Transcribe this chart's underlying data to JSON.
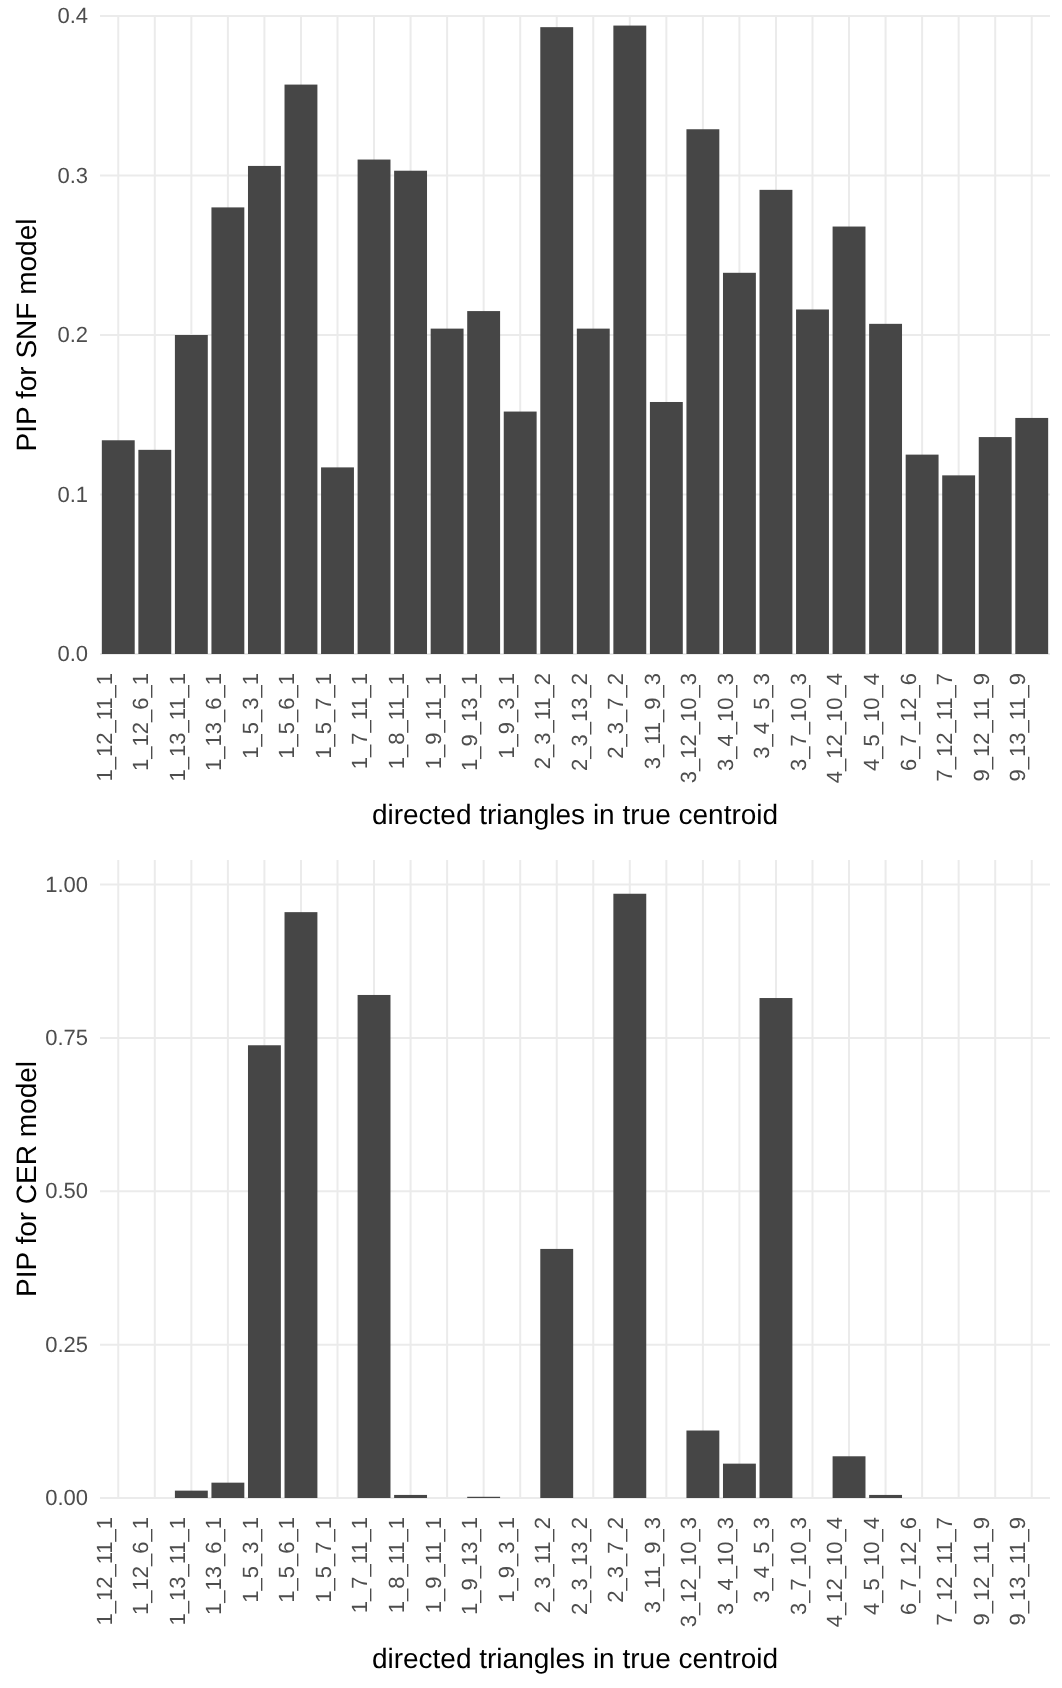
{
  "chart_data": [
    {
      "type": "bar",
      "xlabel": "directed triangles in true centroid",
      "ylabel": "PIP for SNF model",
      "categories": [
        "1_12_11_1",
        "1_12_6_1",
        "1_13_11_1",
        "1_13_6_1",
        "1_5_3_1",
        "1_5_6_1",
        "1_5_7_1",
        "1_7_11_1",
        "1_8_11_1",
        "1_9_11_1",
        "1_9_13_1",
        "1_9_3_1",
        "2_3_11_2",
        "2_3_13_2",
        "2_3_7_2",
        "3_11_9_3",
        "3_12_10_3",
        "3_4_10_3",
        "3_4_5_3",
        "3_7_10_3",
        "4_12_10_4",
        "4_5_10_4",
        "6_7_12_6",
        "7_12_11_7",
        "9_12_11_9",
        "9_13_11_9"
      ],
      "values": [
        0.134,
        0.128,
        0.2,
        0.28,
        0.306,
        0.357,
        0.117,
        0.31,
        0.303,
        0.204,
        0.215,
        0.152,
        0.393,
        0.204,
        0.394,
        0.158,
        0.329,
        0.239,
        0.291,
        0.216,
        0.268,
        0.207,
        0.125,
        0.112,
        0.136,
        0.148
      ],
      "color": "#464646",
      "ylim": [
        0,
        0.4
      ],
      "yticks": [
        {
          "value": 0,
          "label": "0.0"
        },
        0.1,
        0.2,
        0.3,
        0.4
      ],
      "grid": true
    },
    {
      "type": "bar",
      "xlabel": "directed triangles in true centroid",
      "ylabel": "PIP for CER model",
      "categories": [
        "1_12_11_1",
        "1_12_6_1",
        "1_13_11_1",
        "1_13_6_1",
        "1_5_3_1",
        "1_5_6_1",
        "1_5_7_1",
        "1_7_11_1",
        "1_8_11_1",
        "1_9_11_1",
        "1_9_13_1",
        "1_9_3_1",
        "2_3_11_2",
        "2_3_13_2",
        "2_3_7_2",
        "3_11_9_3",
        "3_12_10_3",
        "3_4_10_3",
        "3_4_5_3",
        "3_7_10_3",
        "4_12_10_4",
        "4_5_10_4",
        "6_7_12_6",
        "7_12_11_7",
        "9_12_11_9",
        "9_13_11_9"
      ],
      "values": [
        0,
        0,
        0.012,
        0.025,
        0.738,
        0.955,
        0,
        0.82,
        0.005,
        0,
        0.002,
        0,
        0.406,
        0,
        0.985,
        0,
        0.11,
        0.056,
        0.815,
        0,
        0.068,
        0.005,
        0,
        0,
        0,
        0
      ],
      "color": "#464646",
      "ylim": [
        0,
        1.04
      ],
      "yticks": [
        {
          "value": 0,
          "label": "0.00"
        },
        {
          "value": 0.25,
          "label": "0.25"
        },
        {
          "value": 0.5,
          "label": "0.50"
        },
        {
          "value": 0.75,
          "label": "0.75"
        },
        {
          "value": 1,
          "label": "1.00"
        }
      ],
      "grid": true
    }
  ]
}
